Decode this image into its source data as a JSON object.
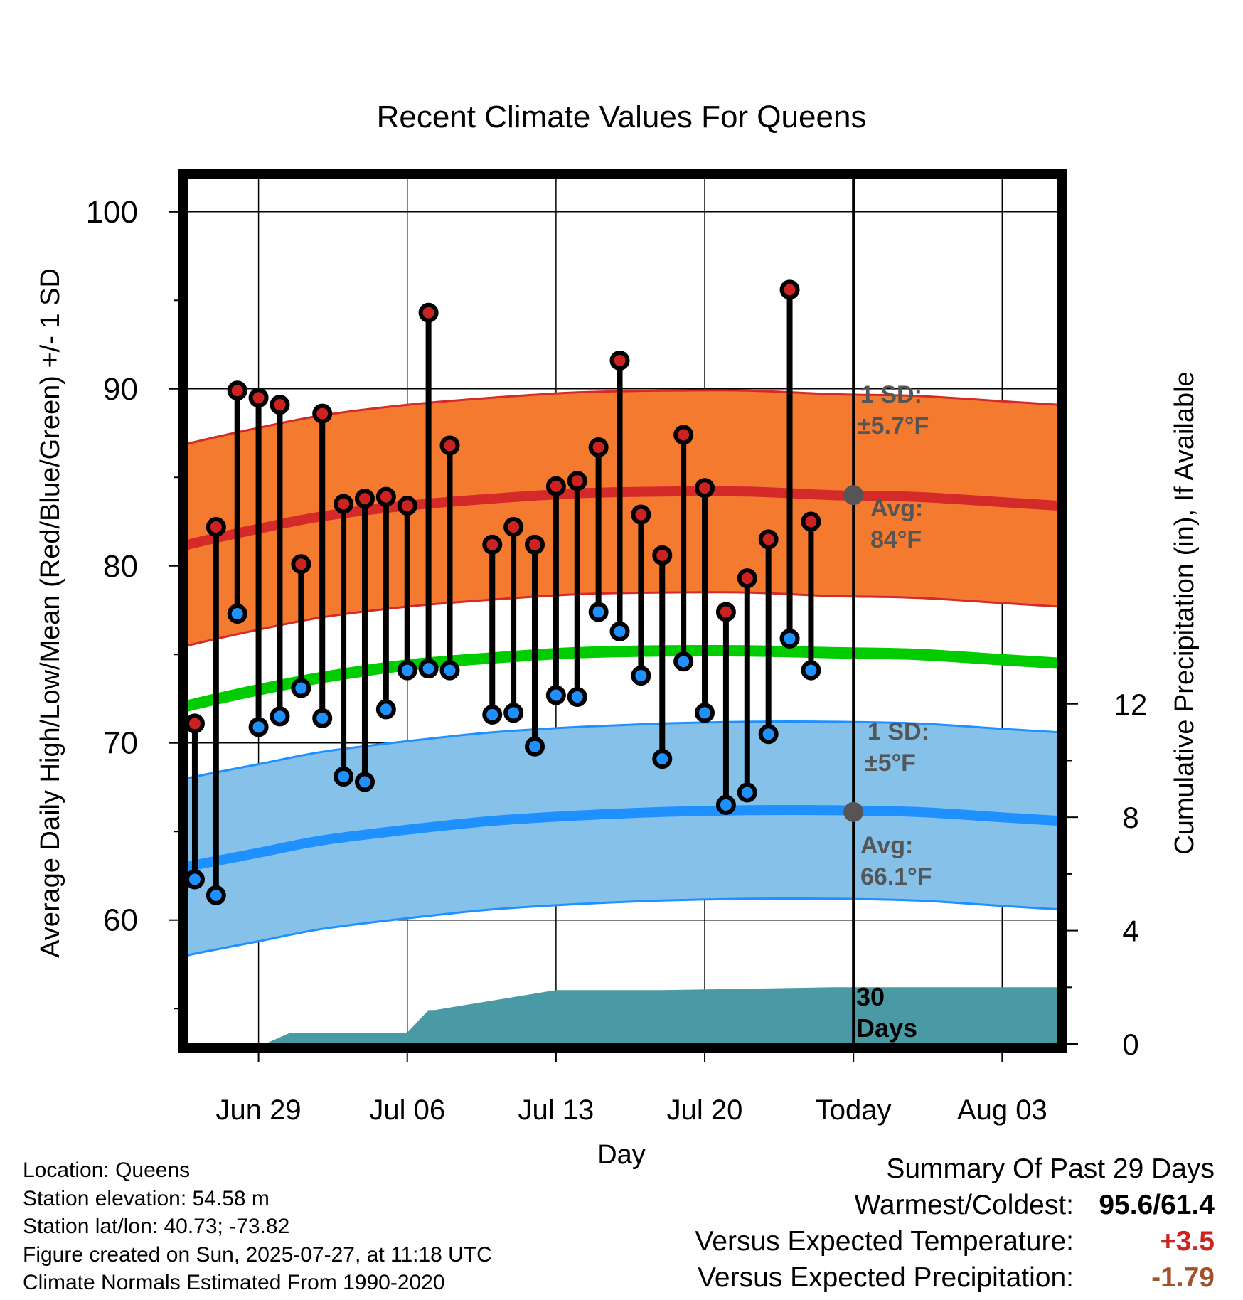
{
  "chart_data": {
    "type": "line",
    "title": "Recent Climate Values For Queens",
    "xlabel": "Day",
    "ylabel": "Average Daily High/Low/Mean (Red/Blue/Green) +/- 1 SD",
    "y2label": "Cumulative Precipitation (in), If Available",
    "ylim": [
      53,
      102
    ],
    "y2lim": [
      0,
      30
    ],
    "yticks": [
      60,
      70,
      80,
      90,
      100
    ],
    "y2ticks": [
      0,
      4,
      8,
      12
    ],
    "xlim": [
      -0.4,
      40.7
    ],
    "xticks": [
      {
        "x": 3,
        "label": "Jun 29"
      },
      {
        "x": 10,
        "label": "Jul 06"
      },
      {
        "x": 17,
        "label": "Jul 13"
      },
      {
        "x": 24,
        "label": "Jul 20"
      },
      {
        "x": 31,
        "label": "Today"
      },
      {
        "x": 38,
        "label": "Aug 03"
      }
    ],
    "grid": true,
    "today_x": 31,
    "days": [
      0,
      1,
      2,
      3,
      4,
      5,
      6,
      7,
      8,
      9,
      10,
      11,
      12,
      13,
      14,
      15,
      16,
      17,
      18,
      19,
      20,
      21,
      22,
      23,
      24,
      25,
      26,
      27,
      28,
      29,
      30
    ],
    "highs": [
      71.1,
      82.2,
      89.9,
      89.5,
      89.1,
      80.1,
      88.6,
      83.5,
      83.8,
      83.9,
      83.4,
      94.3,
      86.8,
      null,
      81.2,
      82.2,
      81.2,
      84.5,
      84.8,
      86.7,
      91.6,
      82.9,
      80.6,
      87.4,
      84.4,
      77.4,
      79.3,
      81.5,
      95.6,
      82.5,
      null
    ],
    "lows": [
      62.3,
      61.4,
      77.3,
      70.9,
      71.5,
      73.1,
      71.4,
      68.1,
      67.8,
      71.9,
      74.1,
      74.2,
      74.1,
      null,
      71.6,
      71.7,
      69.8,
      72.7,
      72.6,
      77.4,
      76.3,
      73.8,
      69.1,
      74.6,
      71.7,
      66.5,
      67.2,
      70.5,
      75.9,
      74.1,
      null
    ],
    "normal_days": [
      -0.5,
      0,
      3,
      6,
      10,
      14,
      18,
      22,
      26,
      30,
      34,
      38,
      40.7
    ],
    "normal_high": [
      81.1,
      81.3,
      82.1,
      82.8,
      83.4,
      83.8,
      84.1,
      84.2,
      84.2,
      84.0,
      83.9,
      83.6,
      83.4
    ],
    "normal_mean": [
      72.0,
      72.2,
      73.0,
      73.7,
      74.4,
      74.8,
      75.1,
      75.2,
      75.2,
      75.1,
      75.0,
      74.7,
      74.5
    ],
    "normal_low": [
      62.9,
      63.1,
      63.8,
      64.5,
      65.1,
      65.6,
      65.9,
      66.1,
      66.2,
      66.2,
      66.1,
      65.8,
      65.6
    ],
    "high_sd": 5.7,
    "low_sd": 5.0,
    "precip_days": [
      3.3,
      4.5,
      10.0,
      11.0,
      11.3,
      17.0,
      18.0,
      22.0,
      30.0,
      40.7
    ],
    "precip": [
      0,
      0.4,
      0.4,
      1.2,
      1.2,
      1.9,
      1.9,
      1.9,
      2.0,
      2.0
    ],
    "precip_label": "30 Days",
    "annotations": {
      "high_sd_line1": "1 SD:",
      "high_sd_line2": "±5.7°F",
      "high_avg_line1": "Avg:",
      "high_avg_line2": "84°F",
      "low_sd_line1": "1 SD:",
      "low_sd_line2": "±5°F",
      "low_avg_line1": "Avg:",
      "low_avg_line2": "66.1°F"
    },
    "today_high_avg": 84.0,
    "today_low_avg": 66.1,
    "colors": {
      "high_band": "#f47a30",
      "high_line": "#d42a2a",
      "mean_line": "#00cc00",
      "low_band": "#85c1e9",
      "low_line": "#1e90ff",
      "precip": "#4a9aa5",
      "high_marker": "#cc2222",
      "low_marker": "#1e90ff",
      "annotation": "#555555"
    }
  },
  "info": {
    "location": "Location: Queens",
    "elevation": "Station elevation: 54.58 m",
    "latlon": "Station lat/lon: 40.73; -73.82",
    "created": "Figure created on Sun, 2025-07-27, at 11:18 UTC",
    "normals": "Climate Normals Estimated From 1990-2020"
  },
  "summary": {
    "title": "Summary Of Past 29 Days",
    "warmest_label": "Warmest/Coldest:",
    "warmest_value": "95.6/61.4",
    "temp_label": "Versus Expected Temperature:",
    "temp_value": "+3.5",
    "precip_label": "Versus Expected Precipitation:",
    "precip_value": "-1.79"
  }
}
